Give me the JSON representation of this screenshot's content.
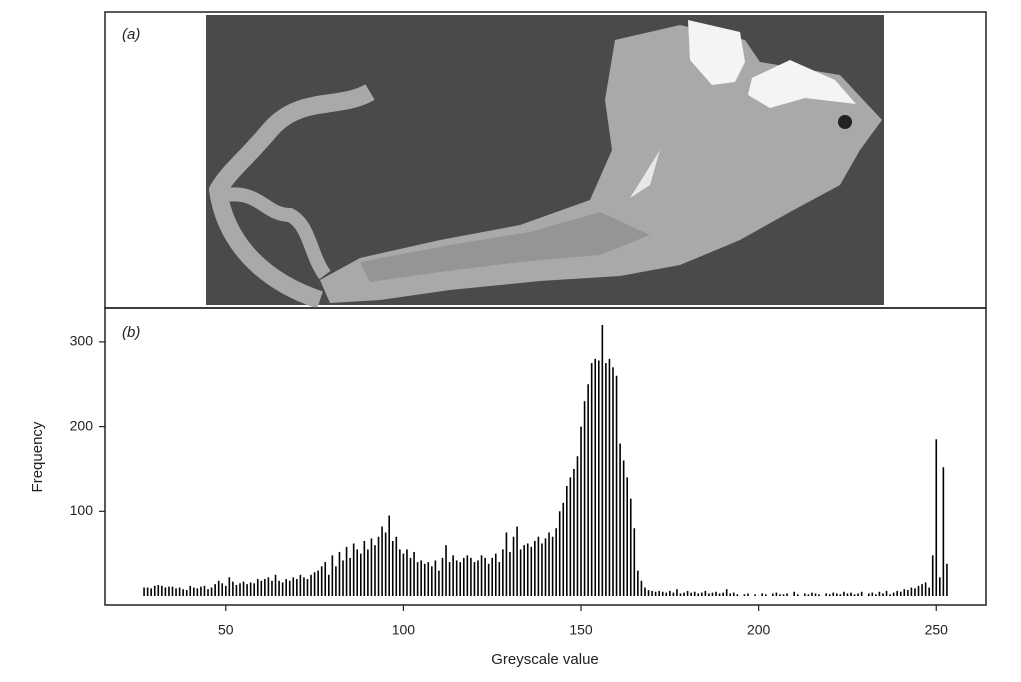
{
  "panel_a": {
    "label": "(a)"
  },
  "chart_data": {
    "type": "bar",
    "label": "(b)",
    "xlabel": "Greyscale value",
    "ylabel": "Frequency",
    "color": "#000000",
    "xlim": [
      16,
      264
    ],
    "ylim": [
      0,
      340
    ],
    "xticks": [
      50,
      100,
      150,
      200,
      250
    ],
    "yticks": [
      100,
      200,
      300
    ],
    "x": [
      27,
      28,
      29,
      30,
      31,
      32,
      33,
      34,
      35,
      36,
      37,
      38,
      39,
      40,
      41,
      42,
      43,
      44,
      45,
      46,
      47,
      48,
      49,
      50,
      51,
      52,
      53,
      54,
      55,
      56,
      57,
      58,
      59,
      60,
      61,
      62,
      63,
      64,
      65,
      66,
      67,
      68,
      69,
      70,
      71,
      72,
      73,
      74,
      75,
      76,
      77,
      78,
      79,
      80,
      81,
      82,
      83,
      84,
      85,
      86,
      87,
      88,
      89,
      90,
      91,
      92,
      93,
      94,
      95,
      96,
      97,
      98,
      99,
      100,
      101,
      102,
      103,
      104,
      105,
      106,
      107,
      108,
      109,
      110,
      111,
      112,
      113,
      114,
      115,
      116,
      117,
      118,
      119,
      120,
      121,
      122,
      123,
      124,
      125,
      126,
      127,
      128,
      129,
      130,
      131,
      132,
      133,
      134,
      135,
      136,
      137,
      138,
      139,
      140,
      141,
      142,
      143,
      144,
      145,
      146,
      147,
      148,
      149,
      150,
      151,
      152,
      153,
      154,
      155,
      156,
      157,
      158,
      159,
      160,
      161,
      162,
      163,
      164,
      165,
      166,
      167,
      168,
      169,
      170,
      171,
      172,
      173,
      174,
      175,
      176,
      177,
      178,
      179,
      180,
      181,
      182,
      183,
      184,
      185,
      186,
      187,
      188,
      189,
      190,
      191,
      192,
      193,
      194,
      195,
      196,
      197,
      198,
      199,
      200,
      201,
      202,
      203,
      204,
      205,
      206,
      207,
      208,
      209,
      210,
      211,
      212,
      213,
      214,
      215,
      216,
      217,
      218,
      219,
      220,
      221,
      222,
      223,
      224,
      225,
      226,
      227,
      228,
      229,
      230,
      231,
      232,
      233,
      234,
      235,
      236,
      237,
      238,
      239,
      240,
      241,
      242,
      243,
      244,
      245,
      246,
      247,
      248,
      249,
      250,
      251,
      252,
      253
    ],
    "values": [
      10,
      10,
      9,
      12,
      13,
      12,
      10,
      11,
      11,
      9,
      10,
      8,
      7,
      12,
      10,
      9,
      11,
      12,
      8,
      10,
      14,
      18,
      15,
      12,
      22,
      17,
      13,
      15,
      17,
      14,
      16,
      15,
      20,
      18,
      20,
      22,
      18,
      25,
      18,
      16,
      20,
      18,
      22,
      20,
      25,
      22,
      20,
      25,
      28,
      30,
      35,
      40,
      25,
      48,
      35,
      52,
      42,
      58,
      45,
      62,
      55,
      50,
      65,
      55,
      68,
      60,
      70,
      82,
      75,
      95,
      65,
      70,
      55,
      50,
      55,
      45,
      52,
      40,
      42,
      38,
      40,
      35,
      42,
      30,
      45,
      60,
      40,
      48,
      42,
      40,
      45,
      48,
      45,
      40,
      42,
      48,
      45,
      38,
      45,
      50,
      40,
      55,
      75,
      52,
      70,
      82,
      55,
      60,
      62,
      58,
      65,
      70,
      62,
      68,
      75,
      70,
      80,
      100,
      110,
      130,
      140,
      150,
      165,
      200,
      230,
      250,
      275,
      280,
      278,
      320,
      275,
      280,
      270,
      260,
      180,
      160,
      140,
      115,
      80,
      30,
      18,
      10,
      7,
      6,
      5,
      6,
      5,
      4,
      6,
      4,
      8,
      3,
      4,
      6,
      4,
      5,
      3,
      4,
      6,
      3,
      4,
      5,
      3,
      4,
      8,
      3,
      4,
      2,
      0,
      2,
      3,
      0,
      2,
      0,
      3,
      2,
      0,
      3,
      4,
      2,
      2,
      3,
      0,
      5,
      2,
      0,
      3,
      2,
      4,
      3,
      2,
      0,
      3,
      2,
      4,
      3,
      2,
      5,
      3,
      4,
      2,
      3,
      5,
      0,
      3,
      4,
      2,
      5,
      3,
      6,
      2,
      4,
      6,
      5,
      8,
      7,
      10,
      9,
      12,
      14,
      16,
      10,
      48,
      185,
      22,
      152,
      38
    ]
  }
}
